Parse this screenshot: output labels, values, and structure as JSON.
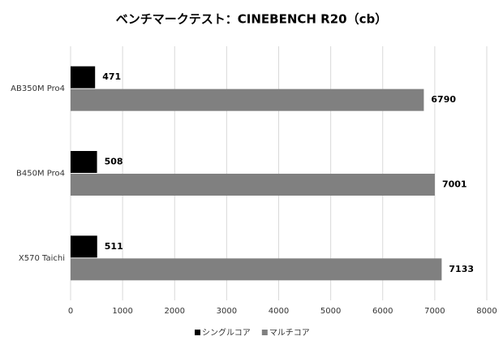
{
  "chart_data": {
    "type": "barh",
    "title": "ベンチマークテスト：CINEBENCH R20（cb）",
    "categories": [
      "AB350M Pro4",
      "B450M Pro4",
      "X570 Taichi"
    ],
    "series": [
      {
        "name": "シングルコア",
        "color": "#000000",
        "values": [
          471,
          508,
          511
        ]
      },
      {
        "name": "マルチコア",
        "color": "#808080",
        "values": [
          6790,
          7001,
          7133
        ]
      }
    ],
    "xlim": [
      0,
      8000
    ],
    "xticks": [
      0,
      1000,
      2000,
      3000,
      4000,
      5000,
      6000,
      7000,
      8000
    ],
    "grid": true,
    "legend": "bottom"
  }
}
